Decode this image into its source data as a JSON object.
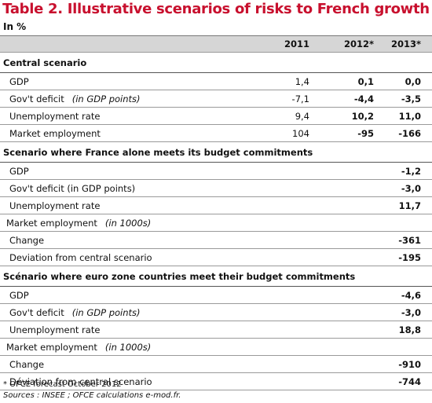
{
  "title": "Table 2. Illustrative scenarios of risks to French growth",
  "unit": "In %",
  "table": {
    "columns": [
      "2011",
      "2012*",
      "2013*"
    ],
    "sections": [
      {
        "heading": "Central scenario",
        "rows": [
          {
            "label": "GDP",
            "values": [
              "1,4",
              "0,1",
              "0,0"
            ]
          },
          {
            "label": "Gov't deficit",
            "note": "(in GDP points)",
            "values": [
              "-7,1",
              "-4,4",
              "-3,5"
            ]
          },
          {
            "label": "Unemployment rate",
            "values": [
              "9,4",
              "10,2",
              "11,0"
            ]
          },
          {
            "label": "Market employment",
            "values": [
              "104",
              "-95",
              "-166"
            ]
          }
        ]
      },
      {
        "heading": "Scenario where France alone meets its budget commitments",
        "rows": [
          {
            "label": "GDP",
            "values": [
              null,
              null,
              "-1,2"
            ]
          },
          {
            "label": "Gov't deficit (in GDP points)",
            "values": [
              null,
              null,
              "-3,0"
            ]
          },
          {
            "label": "Unemployment rate",
            "values": [
              null,
              null,
              "11,7"
            ]
          },
          {
            "label": "Market employment",
            "note": "(in 1000s)",
            "group": true
          },
          {
            "label": "Change",
            "values": [
              null,
              null,
              "-361"
            ]
          },
          {
            "label": "Deviation from central scenario",
            "values": [
              null,
              null,
              "-195"
            ]
          }
        ]
      },
      {
        "heading": "Scénario where euro zone countries meet their budget commitments",
        "rows": [
          {
            "label": "GDP",
            "values": [
              null,
              null,
              "-4,6"
            ]
          },
          {
            "label": "Gov't deficit",
            "note": "(in GDP points)",
            "values": [
              null,
              null,
              "-3,0"
            ]
          },
          {
            "label": "Unemployment rate",
            "values": [
              null,
              null,
              "18,8"
            ]
          },
          {
            "label": "Market employment",
            "note": "(in 1000s)",
            "group": true
          },
          {
            "label": "Change",
            "values": [
              null,
              null,
              "-910"
            ]
          },
          {
            "label": "Déviation from central scenario",
            "values": [
              null,
              null,
              "-744"
            ]
          }
        ]
      }
    ]
  },
  "notes": [
    "* OFCE forecast October 2012",
    "Sources : INSEE ; OFCE calculations e-mod.fr."
  ]
}
